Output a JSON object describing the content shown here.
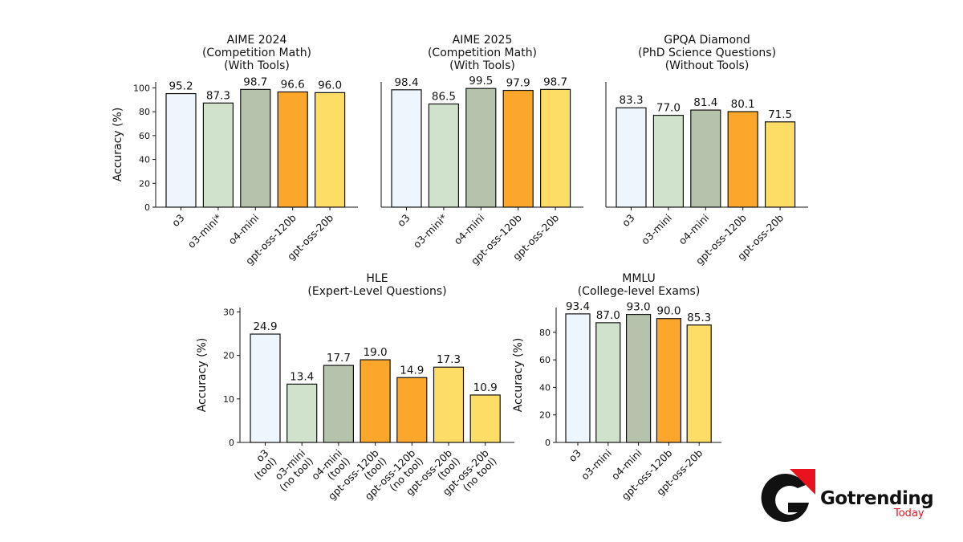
{
  "colors": {
    "o3": "#eef6fd",
    "o3-mini": "#d0e2cc",
    "o4-mini": "#b6c3ac",
    "gpt-oss-120b": "#fca72c",
    "gpt-oss-20b": "#fedd66"
  },
  "chart_data": [
    {
      "type": "bar",
      "title": [
        "AIME 2024",
        "(Competition Math)",
        "(With Tools)"
      ],
      "ylabel": "Accuracy (%)",
      "ylim": [
        0,
        105
      ],
      "yticks": [
        0,
        20,
        40,
        60,
        80,
        100
      ],
      "categories": [
        [
          "o3"
        ],
        [
          "o3-mini*"
        ],
        [
          "o4-mini"
        ],
        [
          "gpt-oss-120b"
        ],
        [
          "gpt-oss-20b"
        ]
      ],
      "values": [
        95.2,
        87.3,
        98.7,
        96.6,
        96.0
      ],
      "value_labels": [
        "95.2",
        "87.3",
        "98.7",
        "96.6",
        "96.0"
      ],
      "color_keys": [
        "o3",
        "o3-mini",
        "o4-mini",
        "gpt-oss-120b",
        "gpt-oss-20b"
      ]
    },
    {
      "type": "bar",
      "title": [
        "AIME 2025",
        "(Competition Math)",
        "(With Tools)"
      ],
      "ylabel": "",
      "ylim": [
        0,
        105
      ],
      "yticks": [],
      "categories": [
        [
          "o3"
        ],
        [
          "o3-mini*"
        ],
        [
          "o4-mini"
        ],
        [
          "gpt-oss-120b"
        ],
        [
          "gpt-oss-20b"
        ]
      ],
      "values": [
        98.4,
        86.5,
        99.5,
        97.9,
        98.7
      ],
      "value_labels": [
        "98.4",
        "86.5",
        "99.5",
        "97.9",
        "98.7"
      ],
      "color_keys": [
        "o3",
        "o3-mini",
        "o4-mini",
        "gpt-oss-120b",
        "gpt-oss-20b"
      ]
    },
    {
      "type": "bar",
      "title": [
        "GPQA Diamond",
        "(PhD Science Questions)",
        "(Without Tools)"
      ],
      "ylabel": "",
      "ylim": [
        0,
        105
      ],
      "yticks": [],
      "categories": [
        [
          "o3"
        ],
        [
          "o3-mini"
        ],
        [
          "o4-mini"
        ],
        [
          "gpt-oss-120b"
        ],
        [
          "gpt-oss-20b"
        ]
      ],
      "values": [
        83.3,
        77.0,
        81.4,
        80.1,
        71.5
      ],
      "value_labels": [
        "83.3",
        "77.0",
        "81.4",
        "80.1",
        "71.5"
      ],
      "color_keys": [
        "o3",
        "o3-mini",
        "o4-mini",
        "gpt-oss-120b",
        "gpt-oss-20b"
      ]
    },
    {
      "type": "bar",
      "title": [
        "HLE",
        "(Expert-Level Questions)"
      ],
      "ylabel": "Accuracy (%)",
      "ylim": [
        0,
        31
      ],
      "yticks": [
        0,
        10,
        20,
        30
      ],
      "categories": [
        [
          "o3",
          "(tool)"
        ],
        [
          "o3-mini",
          "(no tool)"
        ],
        [
          "o4-mini",
          "(tool)"
        ],
        [
          "gpt-oss-120b",
          "(tool)"
        ],
        [
          "gpt-oss-120b",
          "(no tool)"
        ],
        [
          "gpt-oss-20b",
          "(tool)"
        ],
        [
          "gpt-oss-20b",
          "(no tool)"
        ]
      ],
      "values": [
        24.9,
        13.4,
        17.7,
        19.0,
        14.9,
        17.3,
        10.9
      ],
      "value_labels": [
        "24.9",
        "13.4",
        "17.7",
        "19.0",
        "14.9",
        "17.3",
        "10.9"
      ],
      "color_keys": [
        "o3",
        "o3-mini",
        "o4-mini",
        "gpt-oss-120b",
        "gpt-oss-120b",
        "gpt-oss-20b",
        "gpt-oss-20b"
      ]
    },
    {
      "type": "bar",
      "title": [
        "MMLU",
        "(College-level Exams)"
      ],
      "ylabel": "Accuracy (%)",
      "ylim": [
        0,
        98
      ],
      "yticks": [
        0,
        20,
        40,
        60,
        80
      ],
      "categories": [
        [
          "o3"
        ],
        [
          "o3-mini"
        ],
        [
          "o4-mini"
        ],
        [
          "gpt-oss-120b"
        ],
        [
          "gpt-oss-20b"
        ]
      ],
      "values": [
        93.4,
        87.0,
        93.0,
        90.0,
        85.3
      ],
      "value_labels": [
        "93.4",
        "87.0",
        "93.0",
        "90.0",
        "85.3"
      ],
      "color_keys": [
        "o3",
        "o3-mini",
        "o4-mini",
        "gpt-oss-120b",
        "gpt-oss-20b"
      ]
    }
  ],
  "logo": {
    "brand": "Gotrending",
    "sub": "Today"
  }
}
